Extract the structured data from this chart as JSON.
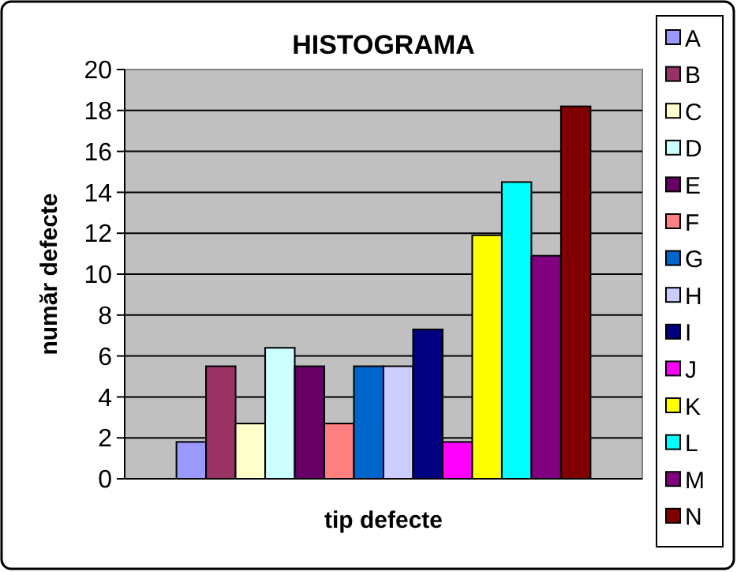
{
  "chart_data": {
    "type": "bar",
    "title": "HISTOGRAMA",
    "xlabel": "tip defecte",
    "ylabel": "număr defecte",
    "categories": [
      null
    ],
    "series": [
      {
        "name": "A",
        "color": "#9999ff",
        "values": [
          1.8
        ]
      },
      {
        "name": "B",
        "color": "#993366",
        "values": [
          5.5
        ]
      },
      {
        "name": "C",
        "color": "#ffffcc",
        "values": [
          2.7
        ]
      },
      {
        "name": "D",
        "color": "#ccffff",
        "values": [
          6.4
        ]
      },
      {
        "name": "E",
        "color": "#660066",
        "values": [
          5.5
        ]
      },
      {
        "name": "F",
        "color": "#ff8080",
        "values": [
          2.7
        ]
      },
      {
        "name": "G",
        "color": "#0066cc",
        "values": [
          5.5
        ]
      },
      {
        "name": "H",
        "color": "#ccccff",
        "values": [
          5.5
        ]
      },
      {
        "name": "I",
        "color": "#000080",
        "values": [
          7.3
        ]
      },
      {
        "name": "J",
        "color": "#ff00ff",
        "values": [
          1.8
        ]
      },
      {
        "name": "K",
        "color": "#ffff00",
        "values": [
          11.9
        ]
      },
      {
        "name": "L",
        "color": "#00ffff",
        "values": [
          14.5
        ]
      },
      {
        "name": "M",
        "color": "#800080",
        "values": [
          10.9
        ]
      },
      {
        "name": "N",
        "color": "#800000",
        "values": [
          18.2
        ]
      }
    ],
    "ylim": [
      0,
      20
    ],
    "yticks": [
      0,
      2,
      4,
      6,
      8,
      10,
      12,
      14,
      16,
      18,
      20
    ],
    "grid": "y",
    "legend": "right"
  }
}
